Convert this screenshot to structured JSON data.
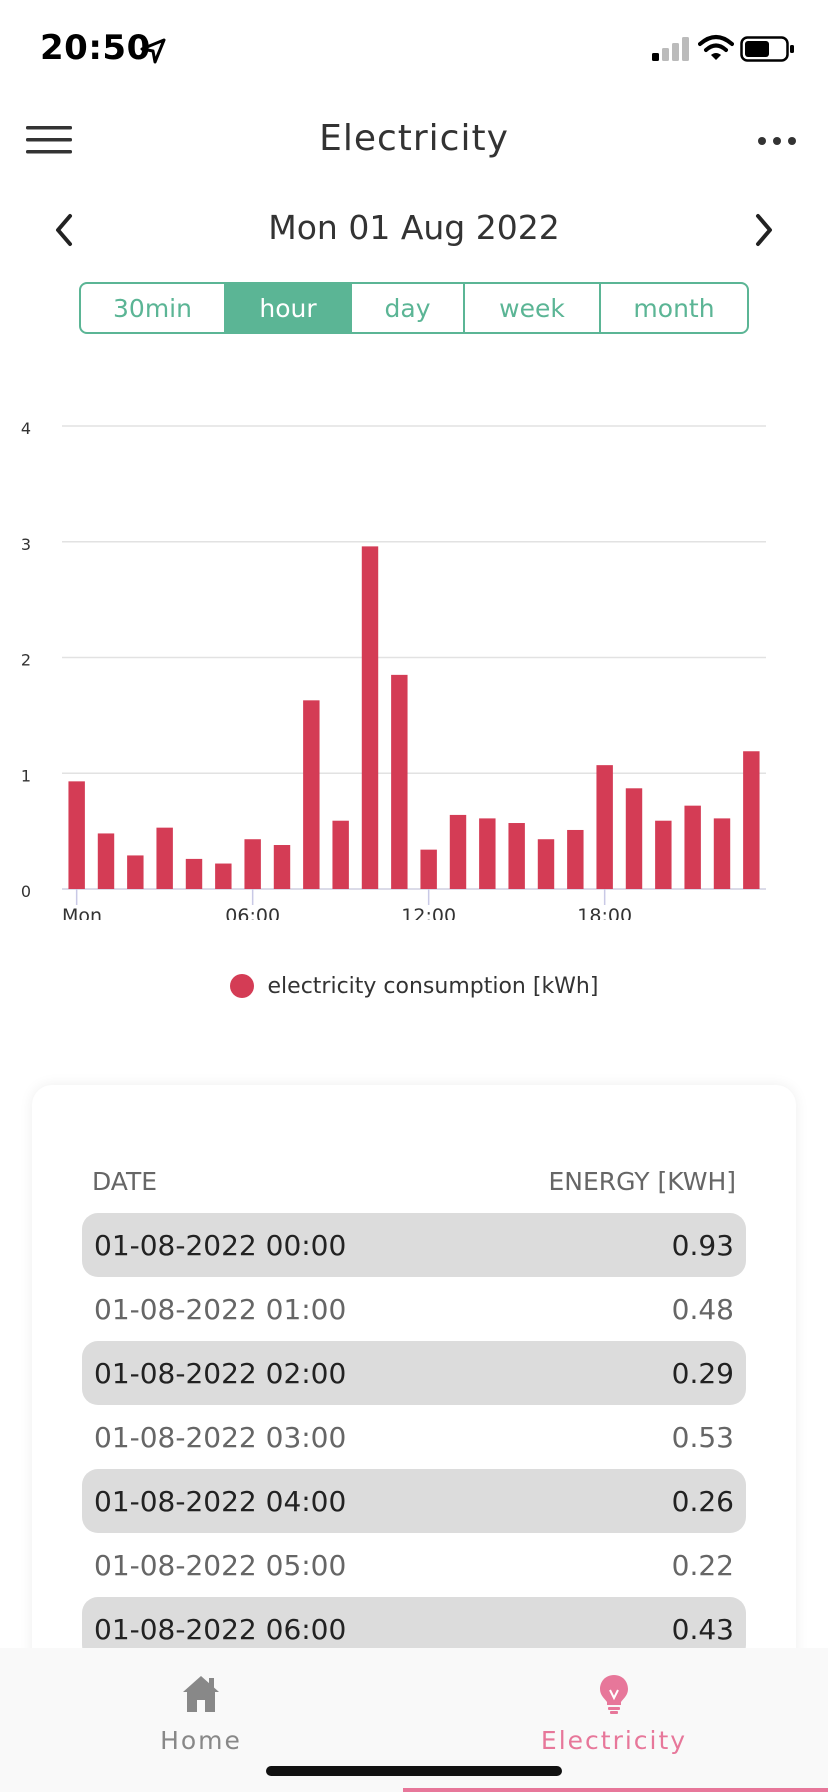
{
  "status_bar": {
    "time": "20:50"
  },
  "header": {
    "title": "Electricity"
  },
  "date_nav": {
    "date": "Mon 01 Aug 2022"
  },
  "periods": [
    {
      "label": "30min",
      "active": false
    },
    {
      "label": "hour",
      "active": true
    },
    {
      "label": "day",
      "active": false
    },
    {
      "label": "week",
      "active": false
    },
    {
      "label": "month",
      "active": false
    }
  ],
  "colors": {
    "accent": "#5bb595",
    "bar": "#d43c55",
    "tab_active": "#e7779a"
  },
  "chart_data": {
    "type": "bar",
    "x": [
      "00",
      "01",
      "02",
      "03",
      "04",
      "05",
      "06",
      "07",
      "08",
      "09",
      "10",
      "11",
      "12",
      "13",
      "14",
      "15",
      "16",
      "17",
      "18",
      "19",
      "20",
      "21",
      "22",
      "23"
    ],
    "values": [
      0.93,
      0.48,
      0.29,
      0.53,
      0.26,
      0.22,
      0.43,
      0.38,
      1.63,
      0.59,
      2.96,
      1.85,
      0.34,
      0.64,
      0.61,
      0.57,
      0.43,
      0.51,
      1.07,
      0.87,
      0.59,
      0.72,
      0.61,
      1.19
    ],
    "x_ticks": [
      {
        "hour": 0,
        "label": "Mon"
      },
      {
        "hour": 6,
        "label": "06:00"
      },
      {
        "hour": 12,
        "label": "12:00"
      },
      {
        "hour": 18,
        "label": "18:00"
      }
    ],
    "y_ticks": [
      0,
      1,
      2,
      3,
      4
    ],
    "ylim": [
      0,
      4
    ],
    "grid": true,
    "legend": "electricity consumption [kWh]",
    "legend_position": "bottom"
  },
  "table": {
    "date_header": "DATE",
    "energy_header": "ENERGY [KWH]",
    "rows": [
      {
        "date": "01-08-2022 00:00",
        "value": "0.93"
      },
      {
        "date": "01-08-2022 01:00",
        "value": "0.48"
      },
      {
        "date": "01-08-2022 02:00",
        "value": "0.29"
      },
      {
        "date": "01-08-2022 03:00",
        "value": "0.53"
      },
      {
        "date": "01-08-2022 04:00",
        "value": "0.26"
      },
      {
        "date": "01-08-2022 05:00",
        "value": "0.22"
      },
      {
        "date": "01-08-2022 06:00",
        "value": "0.43"
      }
    ]
  },
  "tabs": {
    "home": "Home",
    "electricity": "Electricity"
  }
}
